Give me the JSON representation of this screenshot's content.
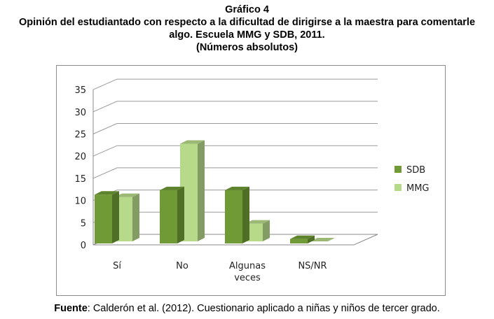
{
  "header": {
    "title": "Gráfico 4",
    "subtitle_line1": "Opinión del estudiantado con respecto a la dificultad de dirigirse a la maestra para comentarle",
    "subtitle_line2": "algo. Escuela MMG y SDB, 2011.",
    "subtitle_line3": "(Números absolutos)"
  },
  "footer": {
    "source_label": "Fuente",
    "source_text": ": Calderón et al. (2012). Cuestionario aplicado a niñas y niños de tercer grado."
  },
  "chart_data": {
    "type": "bar",
    "style": "3d-clustered-column",
    "categories": [
      [
        "Sí"
      ],
      [
        "No"
      ],
      [
        "Algunas",
        "veces"
      ],
      [
        "NS/NR"
      ]
    ],
    "series": [
      {
        "name": "SDB",
        "values": [
          11,
          12,
          12,
          1
        ],
        "color": "#6f9a35"
      },
      {
        "name": "MMG",
        "values": [
          10,
          22,
          4,
          0
        ],
        "color": "#b6d98a"
      }
    ],
    "ylim": [
      0,
      35
    ],
    "yticks": [
      0,
      5,
      10,
      15,
      20,
      25,
      30,
      35
    ],
    "grid": true,
    "legend": "right"
  }
}
